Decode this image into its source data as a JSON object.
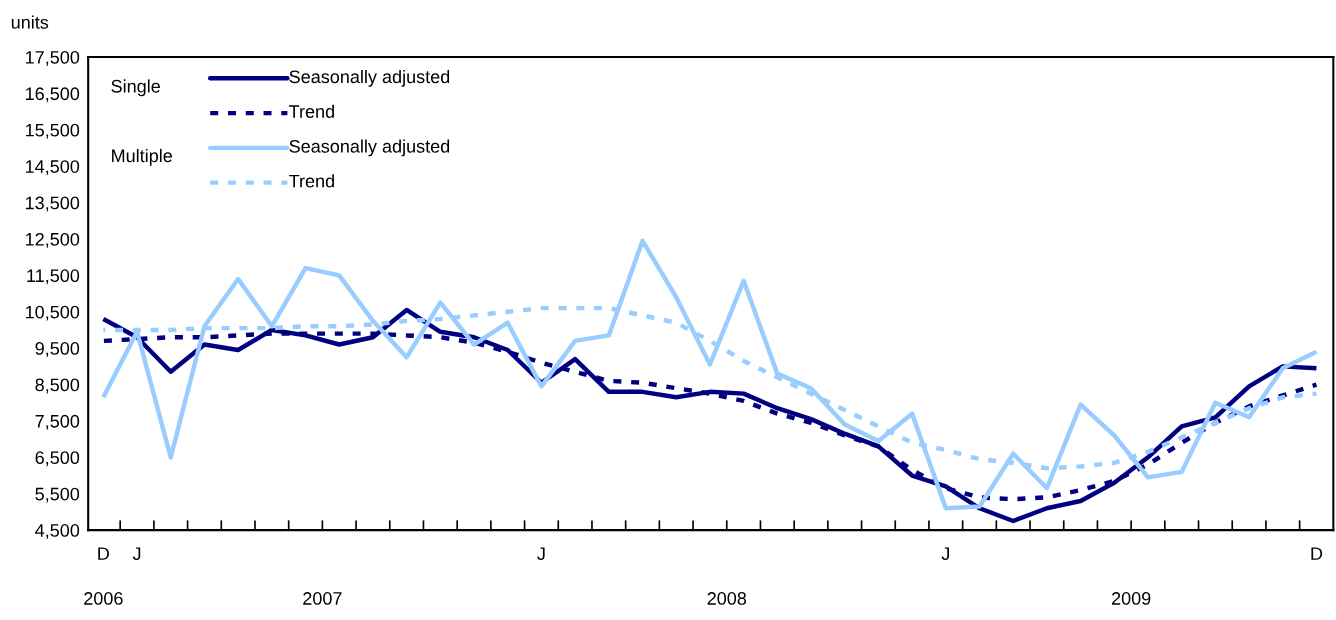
{
  "chart_data": {
    "type": "line",
    "ylabel": "units",
    "categories": [
      "D",
      "J",
      null,
      null,
      null,
      null,
      null,
      null,
      null,
      null,
      null,
      null,
      null,
      "J",
      null,
      null,
      null,
      null,
      null,
      null,
      null,
      null,
      null,
      null,
      null,
      "J",
      null,
      null,
      null,
      null,
      null,
      null,
      null,
      null,
      null,
      null,
      "D"
    ],
    "ylim": [
      4500,
      17500
    ],
    "yticks": [
      {
        "value": 4500,
        "label": "4,500"
      },
      {
        "value": 5500,
        "label": "5,500"
      },
      {
        "value": 6500,
        "label": "6,500"
      },
      {
        "value": 7500,
        "label": "7,500"
      },
      {
        "value": 8500,
        "label": "8,500"
      },
      {
        "value": 9500,
        "label": "9,500"
      },
      {
        "value": 10500,
        "label": "10,500"
      },
      {
        "value": 11500,
        "label": "11,500"
      },
      {
        "value": 12500,
        "label": "12,500"
      },
      {
        "value": 13500,
        "label": "13,500"
      },
      {
        "value": 14500,
        "label": "14,500"
      },
      {
        "value": 15500,
        "label": "15,500"
      },
      {
        "value": 16500,
        "label": "16,500"
      },
      {
        "value": 17500,
        "label": "17,500"
      }
    ],
    "grid": false,
    "legend": "top left",
    "marker": "none",
    "annotations": [
      "Single",
      "Multiple",
      "2006",
      "2007",
      "2008",
      "2009"
    ],
    "series": [
      {
        "name": "Seasonally adjusted",
        "color": "#000080",
        "line_style": "solid",
        "values": [
          10300,
          9800,
          8850,
          9600,
          9450,
          10000,
          9850,
          9600,
          9800,
          10550,
          9950,
          9800,
          9450,
          8550,
          9200,
          8300,
          8300,
          8150,
          8300,
          8250,
          7850,
          7550,
          7150,
          6800,
          6000,
          5700,
          5100,
          4750,
          5100,
          5300,
          5800,
          6500,
          7350,
          7600,
          8450,
          9000,
          8950
        ]
      },
      {
        "name": "Trend",
        "color": "#000080",
        "line_style": "dashed",
        "values": [
          9700,
          9750,
          9800,
          9800,
          9850,
          9900,
          9900,
          9900,
          9900,
          9850,
          9800,
          9650,
          9400,
          9100,
          8850,
          8600,
          8550,
          8400,
          8250,
          8050,
          7700,
          7450,
          7100,
          6800,
          6150,
          5650,
          5400,
          5350,
          5400,
          5600,
          5850,
          6300,
          6900,
          7450,
          7900,
          8200,
          8500
        ]
      },
      {
        "name": "Seasonally adjusted",
        "color": "#99ccff",
        "line_style": "solid",
        "values": [
          8150,
          9950,
          6500,
          10100,
          11400,
          10100,
          11700,
          11500,
          10250,
          9250,
          10750,
          9600,
          10200,
          8450,
          9700,
          9850,
          12450,
          10900,
          9050,
          11350,
          8800,
          8400,
          7400,
          6950,
          7700,
          5100,
          5150,
          6600,
          5650,
          7950,
          7100,
          5950,
          6100,
          8000,
          7600,
          8950,
          9400
        ]
      },
      {
        "name": "Trend",
        "color": "#99ccff",
        "line_style": "dashed",
        "values": [
          10000,
          10000,
          10000,
          10050,
          10050,
          10050,
          10100,
          10100,
          10150,
          10250,
          10300,
          10400,
          10500,
          10600,
          10600,
          10600,
          10400,
          10200,
          9700,
          9150,
          8700,
          8250,
          7800,
          7350,
          6900,
          6700,
          6450,
          6350,
          6200,
          6250,
          6350,
          6650,
          7050,
          7450,
          7850,
          8150,
          8250
        ]
      }
    ]
  }
}
